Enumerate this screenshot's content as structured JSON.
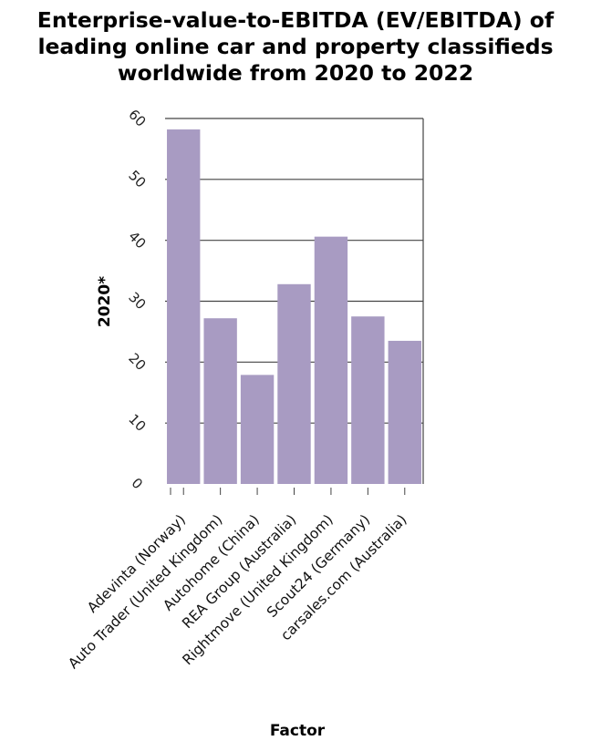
{
  "chart_data": {
    "type": "bar",
    "title_lines": [
      "Enterprise-value-to-EBITDA (EV/EBITDA) of",
      "leading online car and property classifieds",
      "worldwide from 2020 to 2022"
    ],
    "xlabel": "Factor",
    "ylabel": "2020*",
    "categories": [
      "Adevinta (Norway)",
      "Auto Trader (United Kingdom)",
      "Autohome (China)",
      "REA Group (Australia)",
      "Rightmove (United Kingdom)",
      "Scout24 (Germany)",
      "carsales.com (Australia)"
    ],
    "values": [
      58.2,
      27.2,
      17.9,
      32.8,
      40.6,
      27.5,
      23.5
    ],
    "ylim": [
      0,
      60
    ],
    "yticks": [
      "0",
      "10",
      "20",
      "30",
      "40",
      "50",
      "60"
    ],
    "grid": true,
    "bar_color": "#a89bc2",
    "grid_color": "#444444"
  }
}
